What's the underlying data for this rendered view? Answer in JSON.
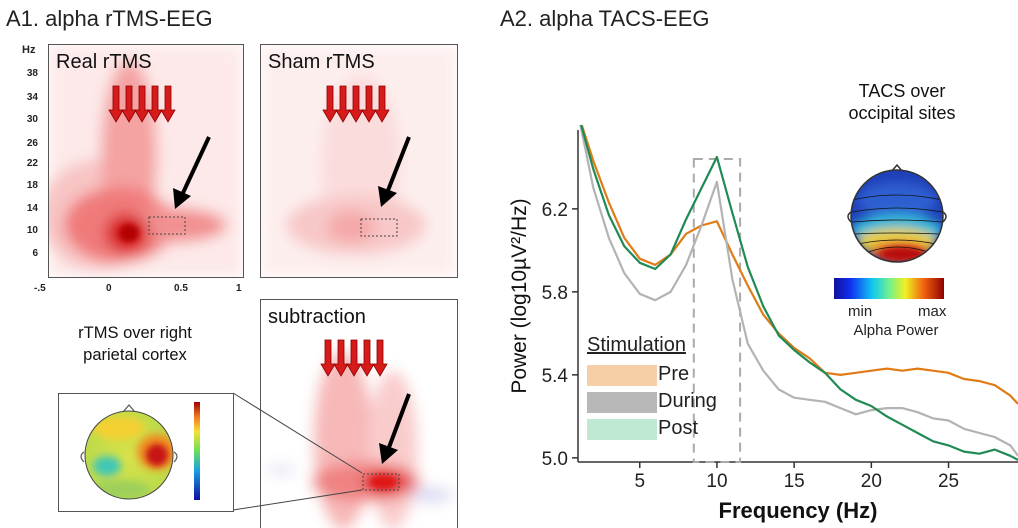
{
  "left": {
    "heading": "A1. alpha rTMS-EEG",
    "y_unit": "Hz",
    "y_ticks": [
      "38",
      "34",
      "30",
      "26",
      "22",
      "18",
      "14",
      "10",
      "6"
    ],
    "x_ticks": [
      "-.5",
      "0",
      "0.5",
      "1"
    ],
    "panels": {
      "real": "Real rTMS",
      "sham": "Sham rTMS",
      "subtraction": "subtraction"
    },
    "note_line1": "rTMS over right",
    "note_line2": "parietal cortex"
  },
  "right": {
    "heading": "A2. alpha TACS-EEG",
    "inset_line1": "TACS over",
    "inset_line2": "occipital sites",
    "colorbar_min": "min",
    "colorbar_max": "max",
    "colorbar_title": "Alpha Power",
    "legend_title": "Stimulation"
  },
  "chart_data": {
    "type": "line",
    "title": "A2. alpha TACS-EEG",
    "xlabel": "Frequency (Hz)",
    "ylabel": "Power (log10µV²/Hz)",
    "xlim": [
      1,
      29.5
    ],
    "ylim": [
      4.98,
      6.58
    ],
    "x_ticks": [
      5,
      10,
      15,
      20,
      25
    ],
    "y_ticks": [
      5.0,
      5.4,
      5.8,
      6.2
    ],
    "alpha_band": [
      8.5,
      11.5
    ],
    "series": [
      {
        "name": "Pre",
        "color": "#e07b16",
        "x": [
          1,
          2,
          3,
          4,
          5,
          6,
          7,
          8,
          9,
          10,
          11,
          12,
          13,
          14,
          15,
          16,
          17,
          18,
          19,
          20,
          21,
          22,
          23,
          24,
          25,
          26,
          27,
          28,
          29,
          29.5
        ],
        "y": [
          6.66,
          6.43,
          6.23,
          6.06,
          5.96,
          5.93,
          5.98,
          6.08,
          6.12,
          6.14,
          5.98,
          5.83,
          5.69,
          5.6,
          5.53,
          5.48,
          5.41,
          5.4,
          5.41,
          5.42,
          5.43,
          5.42,
          5.43,
          5.42,
          5.41,
          5.38,
          5.37,
          5.35,
          5.3,
          5.26
        ]
      },
      {
        "name": "During",
        "color": "#b3b3b3",
        "x": [
          1,
          2,
          3,
          4,
          5,
          6,
          7,
          8,
          9,
          10,
          11,
          12,
          13,
          14,
          15,
          16,
          17,
          18,
          19,
          20,
          21,
          22,
          23,
          24,
          25,
          26,
          27,
          28,
          29,
          29.5
        ],
        "y": [
          6.66,
          6.3,
          6.06,
          5.89,
          5.79,
          5.76,
          5.8,
          5.93,
          6.12,
          6.33,
          5.86,
          5.55,
          5.42,
          5.33,
          5.29,
          5.28,
          5.27,
          5.24,
          5.21,
          5.23,
          5.24,
          5.24,
          5.22,
          5.19,
          5.18,
          5.14,
          5.12,
          5.1,
          5.06,
          5.01
        ]
      },
      {
        "name": "Post",
        "color": "#1f8a55",
        "x": [
          1,
          2,
          3,
          4,
          5,
          6,
          7,
          8,
          9,
          10,
          11,
          12,
          13,
          14,
          15,
          16,
          17,
          18,
          19,
          20,
          21,
          22,
          23,
          24,
          25,
          26,
          27,
          28,
          29,
          29.5
        ],
        "y": [
          6.66,
          6.39,
          6.17,
          6.02,
          5.94,
          5.91,
          5.98,
          6.15,
          6.3,
          6.45,
          6.18,
          5.92,
          5.73,
          5.59,
          5.52,
          5.46,
          5.41,
          5.33,
          5.28,
          5.25,
          5.2,
          5.16,
          5.12,
          5.08,
          5.06,
          5.03,
          5.02,
          5.04,
          5.01,
          4.99
        ]
      }
    ]
  }
}
